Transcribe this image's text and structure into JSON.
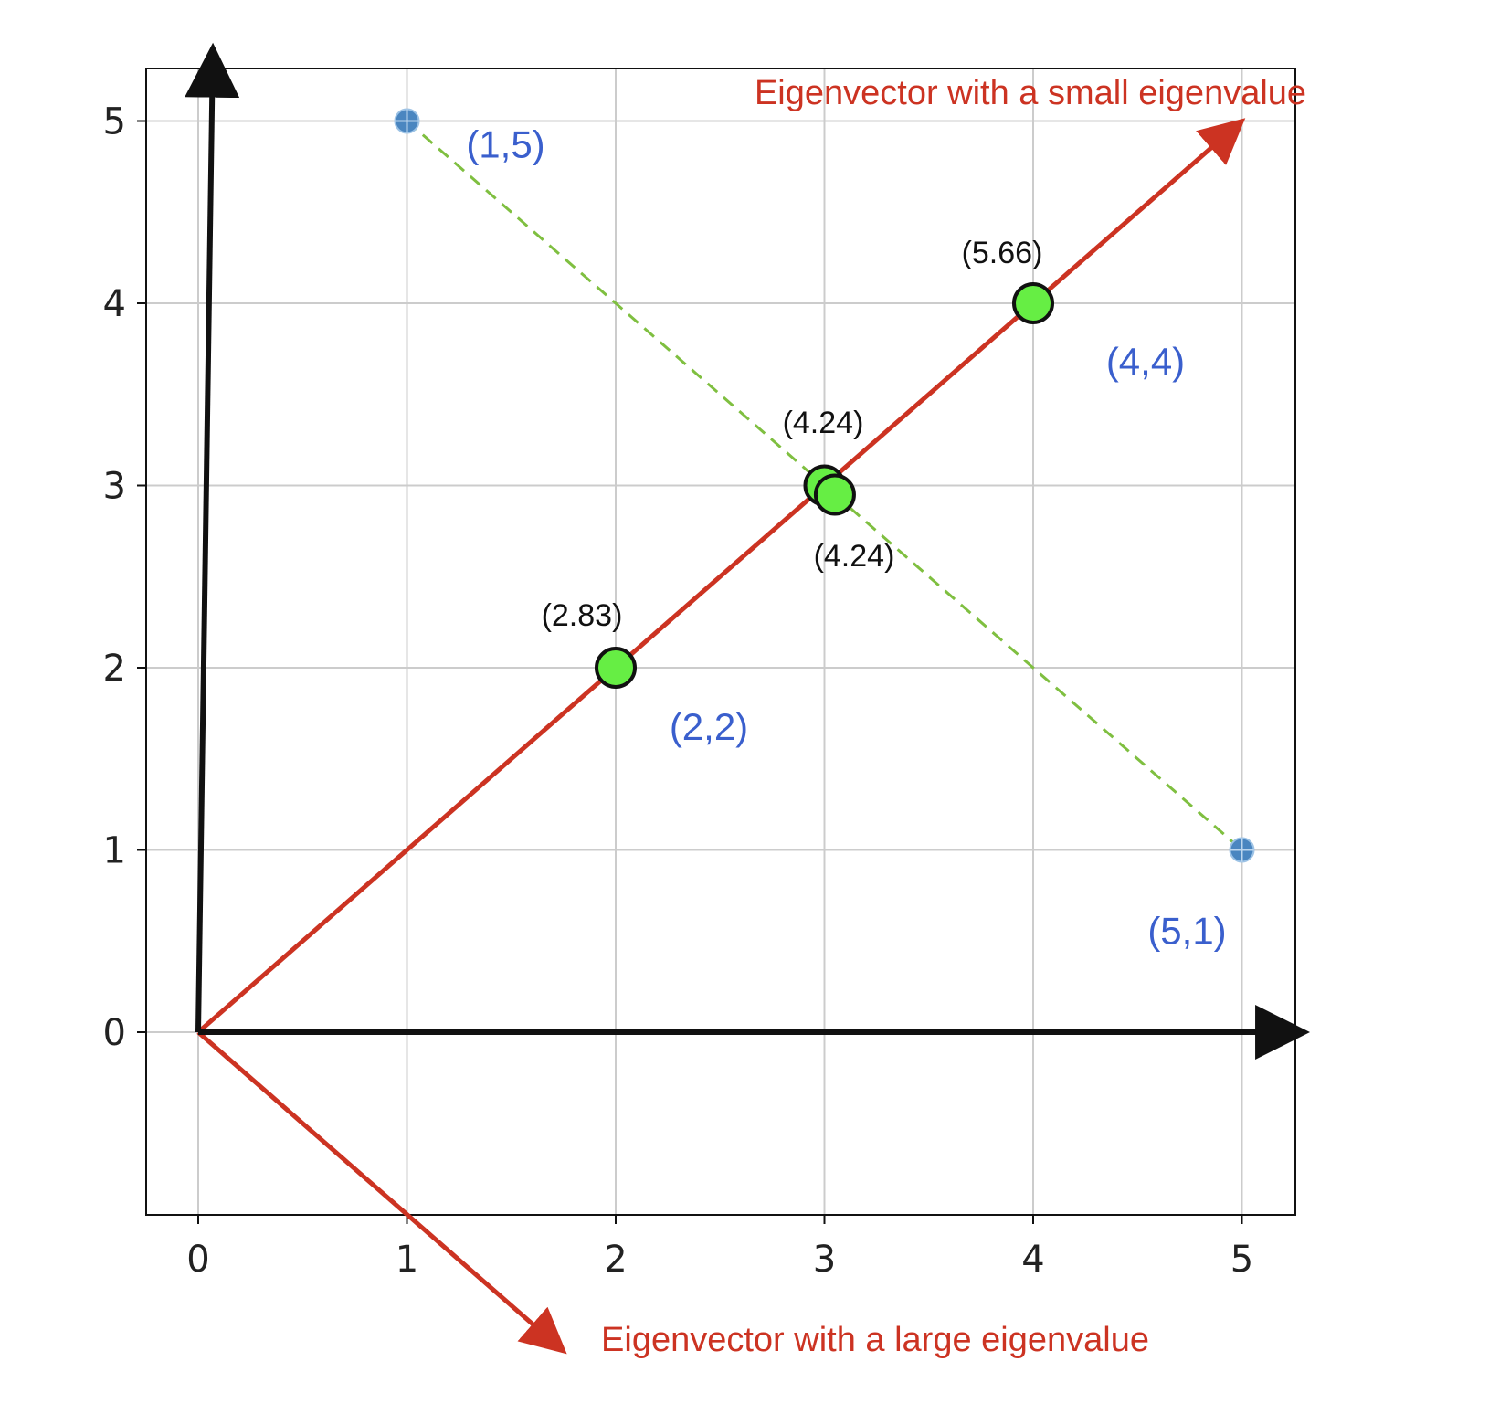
{
  "chart_data": {
    "type": "scatter",
    "title": "",
    "xlabel": "",
    "ylabel": "",
    "xlim": [
      -0.25,
      5.25
    ],
    "ylim": [
      -1.0,
      5.3
    ],
    "x_ticks": [
      "0",
      "1",
      "2",
      "3",
      "4",
      "5"
    ],
    "y_ticks": [
      "0",
      "1",
      "2",
      "3",
      "4",
      "5"
    ],
    "grid": true,
    "data_points": [
      {
        "x": 1,
        "y": 5,
        "label": "(1,5)"
      },
      {
        "x": 5,
        "y": 1,
        "label": "(5,1)"
      }
    ],
    "projected_points": [
      {
        "x": 2,
        "y": 2,
        "coord_label": "(2,2)",
        "value_label": "(2.83)"
      },
      {
        "x": 3,
        "y": 3,
        "coord_label": "",
        "value_label": "(4.24)"
      },
      {
        "x": 3.05,
        "y": 2.95,
        "coord_label": "",
        "value_label": "(4.24)"
      },
      {
        "x": 4,
        "y": 4,
        "coord_label": "(4,4)",
        "value_label": "(5.66)"
      }
    ],
    "projection_line": {
      "from": [
        1,
        5
      ],
      "to": [
        5,
        1
      ]
    },
    "axes_arrows": [
      {
        "from": [
          0,
          0
        ],
        "to": [
          5.3,
          0
        ]
      },
      {
        "from": [
          0,
          0
        ],
        "to": [
          0.07,
          5.4
        ]
      }
    ],
    "eigenvectors": [
      {
        "label": "Eigenvector with a small eigenvalue",
        "from": [
          0,
          0
        ],
        "to": [
          5,
          5
        ]
      },
      {
        "label": "Eigenvector with a large eigenvalue",
        "from": [
          0,
          0
        ],
        "to": [
          1.75,
          -1.75
        ]
      }
    ],
    "colors": {
      "eigen_red": "#cc3322",
      "axis_black": "#111111",
      "point_green": "#66ee44",
      "point_blue": "#4a86c0",
      "projection_green": "#7fbf40",
      "label_blue": "#3a5fcd",
      "grid_gray": "#cccccc"
    }
  }
}
